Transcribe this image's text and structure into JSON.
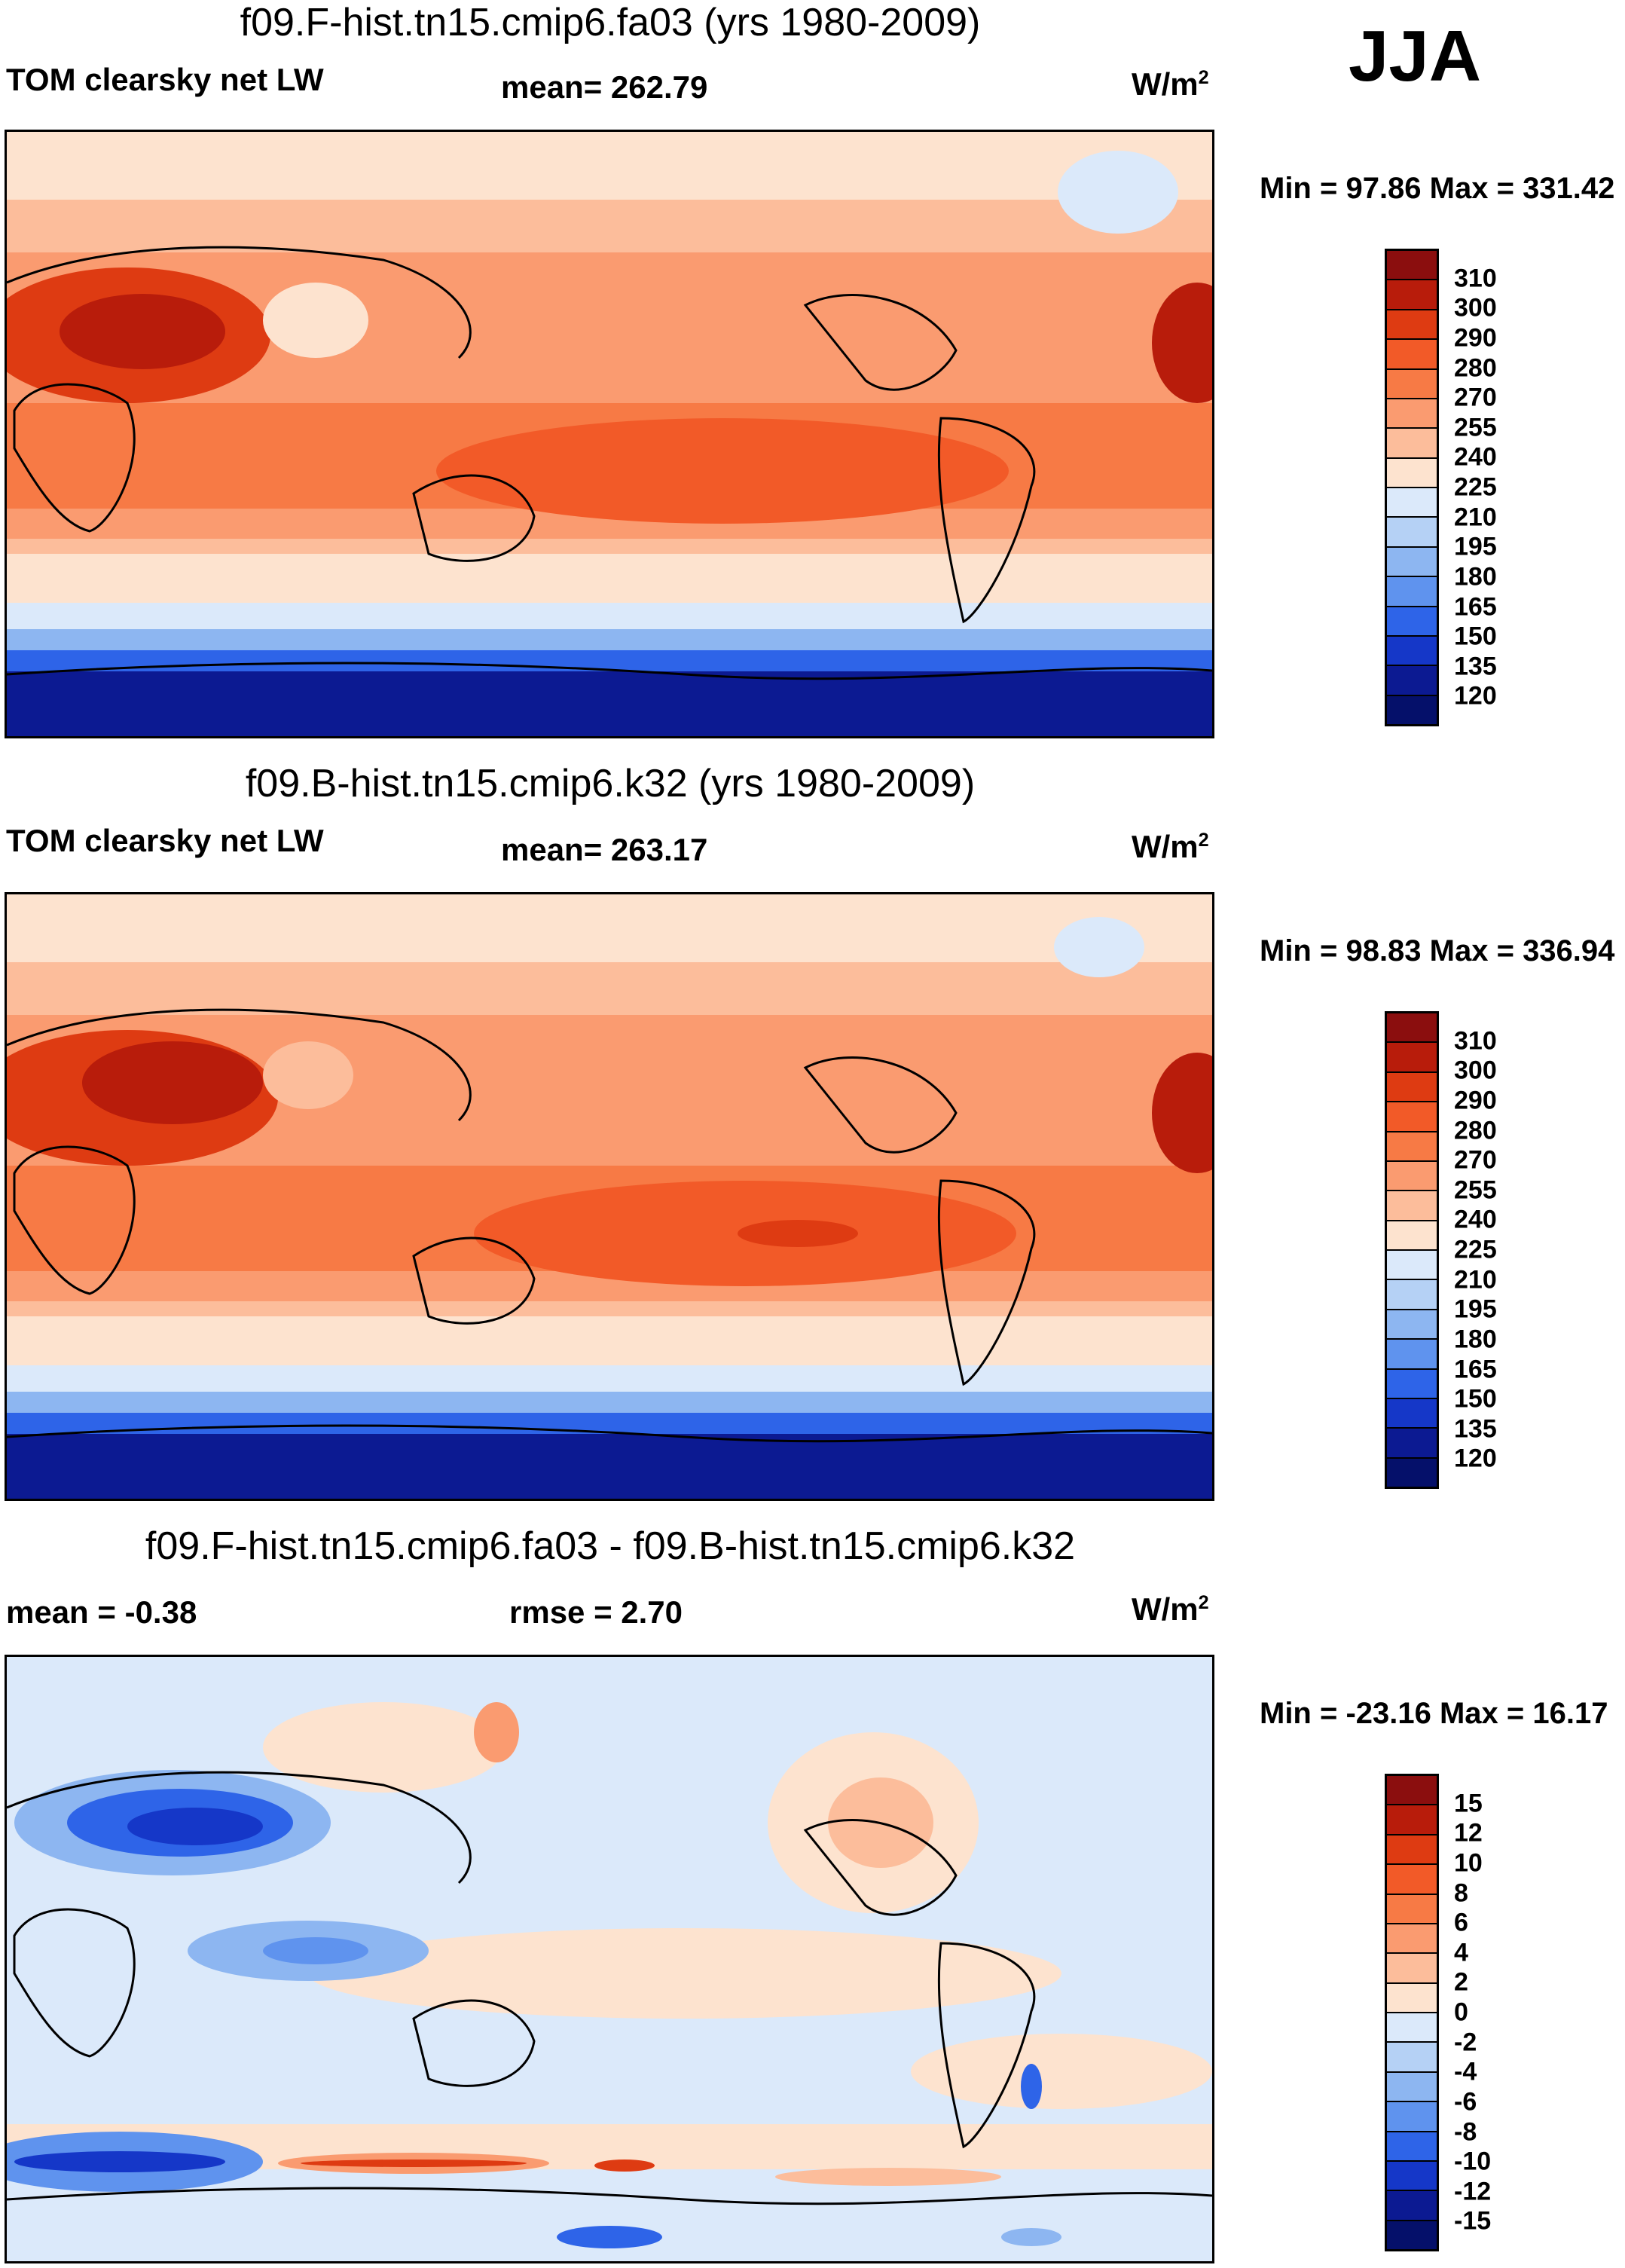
{
  "season": "JJA",
  "units_base": "W/m",
  "units_exp": "2",
  "panels": [
    {
      "title": "f09.F-hist.tn15.cmip6.fa03 (yrs 1980-2009)",
      "variable": "TOM clearsky net LW",
      "stat": "mean= 262.79",
      "minmax": "Min =  97.86 Max = 331.42",
      "levels": [
        "310",
        "300",
        "290",
        "280",
        "270",
        "255",
        "240",
        "225",
        "210",
        "195",
        "180",
        "165",
        "150",
        "135",
        "120"
      ],
      "colors": [
        "#8b0e0e",
        "#b81c0b",
        "#de3b12",
        "#f25a28",
        "#f77a45",
        "#fa9b70",
        "#fcbd9b",
        "#fde3cf",
        "#dbe9fa",
        "#b5d1f5",
        "#8db6f1",
        "#5f93ee",
        "#2e64e8",
        "#1537c8",
        "#0c1a92",
        "#05106a"
      ]
    },
    {
      "title": "f09.B-hist.tn15.cmip6.k32 (yrs 1980-2009)",
      "variable": "TOM clearsky net LW",
      "stat": "mean= 263.17",
      "minmax": "Min =  98.83 Max = 336.94",
      "levels": [
        "310",
        "300",
        "290",
        "280",
        "270",
        "255",
        "240",
        "225",
        "210",
        "195",
        "180",
        "165",
        "150",
        "135",
        "120"
      ],
      "colors": [
        "#8b0e0e",
        "#b81c0b",
        "#de3b12",
        "#f25a28",
        "#f77a45",
        "#fa9b70",
        "#fcbd9b",
        "#fde3cf",
        "#dbe9fa",
        "#b5d1f5",
        "#8db6f1",
        "#5f93ee",
        "#2e64e8",
        "#1537c8",
        "#0c1a92",
        "#05106a"
      ]
    },
    {
      "title": "f09.F-hist.tn15.cmip6.fa03 - f09.B-hist.tn15.cmip6.k32",
      "mean": "mean =  -0.38",
      "rmse": "rmse =   2.70",
      "minmax": "Min = -23.16 Max =  16.17",
      "levels": [
        "15",
        "12",
        "10",
        "8",
        "6",
        "4",
        "2",
        "0",
        "-2",
        "-4",
        "-6",
        "-8",
        "-10",
        "-12",
        "-15"
      ],
      "colors": [
        "#8b0e0e",
        "#b81c0b",
        "#de3b12",
        "#f25a28",
        "#f77a45",
        "#fa9b70",
        "#fcbd9b",
        "#fde3cf",
        "#dbe9fa",
        "#b5d1f5",
        "#8db6f1",
        "#5f93ee",
        "#2e64e8",
        "#1537c8",
        "#0c1a92",
        "#05106a"
      ]
    }
  ]
}
